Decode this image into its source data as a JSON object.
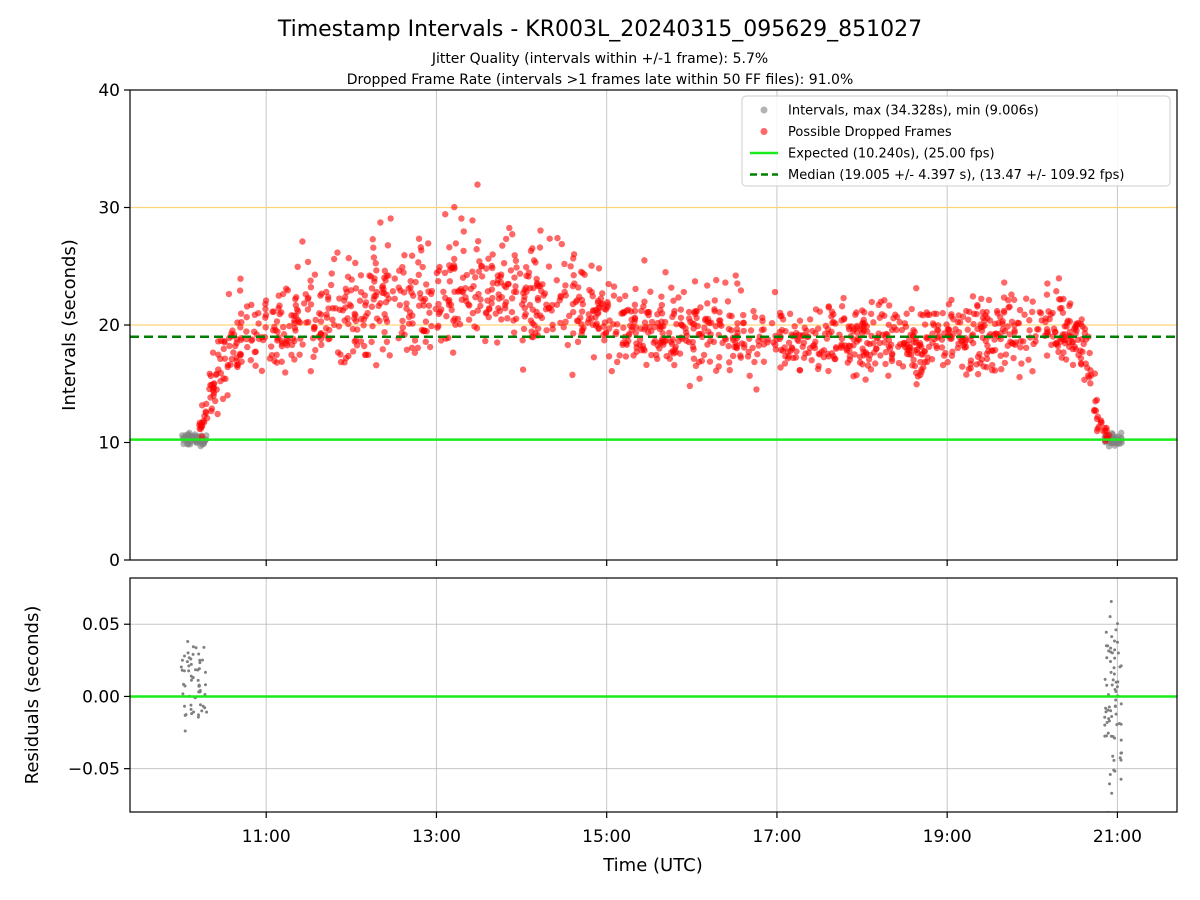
{
  "chart_data": {
    "title": "Timestamp Intervals - KR003L_20240315_095629_851027",
    "subtitles": [
      "Jitter Quality (intervals within +/-1 frame): 5.7%",
      "Dropped Frame Rate (intervals >1 frames late within 50 FF files): 91.0%"
    ],
    "xlabel": "Time (UTC)",
    "x_ticks": [
      "11:00",
      "13:00",
      "15:00",
      "17:00",
      "19:00",
      "21:00"
    ],
    "x_tick_hours": [
      11,
      13,
      15,
      17,
      19,
      21
    ],
    "xlim_hours": [
      9.4,
      21.7
    ],
    "grid": true,
    "panels": [
      {
        "type": "scatter",
        "ylabel": "Intervals (seconds)",
        "ylim": [
          0,
          40
        ],
        "y_ticks": [
          "0",
          "10",
          "20",
          "30",
          "40"
        ],
        "y_tick_values": [
          0,
          10,
          20,
          30,
          40
        ],
        "hlines": [
          {
            "name": "Expected (10.240s), (25.00 fps)",
            "y": 10.24,
            "color": "#1aeb1a",
            "style": "solid"
          },
          {
            "name": "Median (19.005 +/- 4.397 s), (13.47 +/- 109.92 fps)",
            "y": 19.005,
            "color": "#008000",
            "style": "dashed"
          },
          {
            "name": "",
            "y": 20,
            "color": "#ffd37a",
            "style": "solid"
          },
          {
            "name": "",
            "y": 30,
            "color": "#ffd37a",
            "style": "solid"
          }
        ],
        "series": [
          {
            "name": "Intervals, max (34.328s), min (9.006s)",
            "color": "#808080",
            "clusters": [
              {
                "x_start": 10.0,
                "x_end": 10.3,
                "y_mean": 10.25,
                "y_spread": 0.5,
                "count": 60
              },
              {
                "x_start": 20.85,
                "x_end": 21.05,
                "y_mean": 10.25,
                "y_spread": 0.5,
                "count": 55
              }
            ]
          },
          {
            "name": "Possible Dropped Frames",
            "color": "#ff0000",
            "envelope": [
              {
                "x": 10.2,
                "mean": 10.8,
                "spread": 0.8
              },
              {
                "x": 10.4,
                "mean": 15.5,
                "spread": 2.5
              },
              {
                "x": 10.7,
                "mean": 19.0,
                "spread": 3.0
              },
              {
                "x": 11.5,
                "mean": 20.0,
                "spread": 3.5
              },
              {
                "x": 12.5,
                "mean": 22.0,
                "spread": 4.0
              },
              {
                "x": 13.5,
                "mean": 23.0,
                "spread": 4.5
              },
              {
                "x": 14.5,
                "mean": 22.0,
                "spread": 3.5
              },
              {
                "x": 15.3,
                "mean": 19.5,
                "spread": 2.8
              },
              {
                "x": 17.0,
                "mean": 18.8,
                "spread": 2.6
              },
              {
                "x": 19.0,
                "mean": 18.6,
                "spread": 2.6
              },
              {
                "x": 20.4,
                "mean": 19.5,
                "spread": 3.0
              },
              {
                "x": 20.65,
                "mean": 18.0,
                "spread": 3.0
              },
              {
                "x": 20.75,
                "mean": 12.5,
                "spread": 1.5
              },
              {
                "x": 20.9,
                "mean": 10.4,
                "spread": 0.3
              }
            ],
            "count": 1500
          }
        ],
        "legend": {
          "placement": "top-right",
          "entries": [
            "Intervals, max (34.328s), min (9.006s)",
            "Possible Dropped Frames",
            "Expected (10.240s), (25.00 fps)",
            "Median (19.005 +/- 4.397 s), (13.47 +/- 109.92 fps)"
          ]
        }
      },
      {
        "type": "scatter",
        "ylabel": "Residuals (seconds)",
        "ylim": [
          -0.08,
          0.082
        ],
        "y_ticks": [
          "0.05",
          "0.00",
          "−0.05"
        ],
        "y_tick_values": [
          0.05,
          0.0,
          -0.05
        ],
        "hlines": [
          {
            "name": "",
            "y": 0.0,
            "color": "#1aeb1a",
            "style": "solid"
          }
        ],
        "series": [
          {
            "name": "",
            "color": "#808080",
            "clusters": [
              {
                "x_start": 10.0,
                "x_end": 10.3,
                "y_mean": 0.01,
                "y_spread": 0.03,
                "count": 60
              },
              {
                "x_start": 20.85,
                "x_end": 21.05,
                "y_mean": 0.0,
                "y_spread": 0.06,
                "count": 75
              }
            ]
          }
        ]
      }
    ]
  }
}
